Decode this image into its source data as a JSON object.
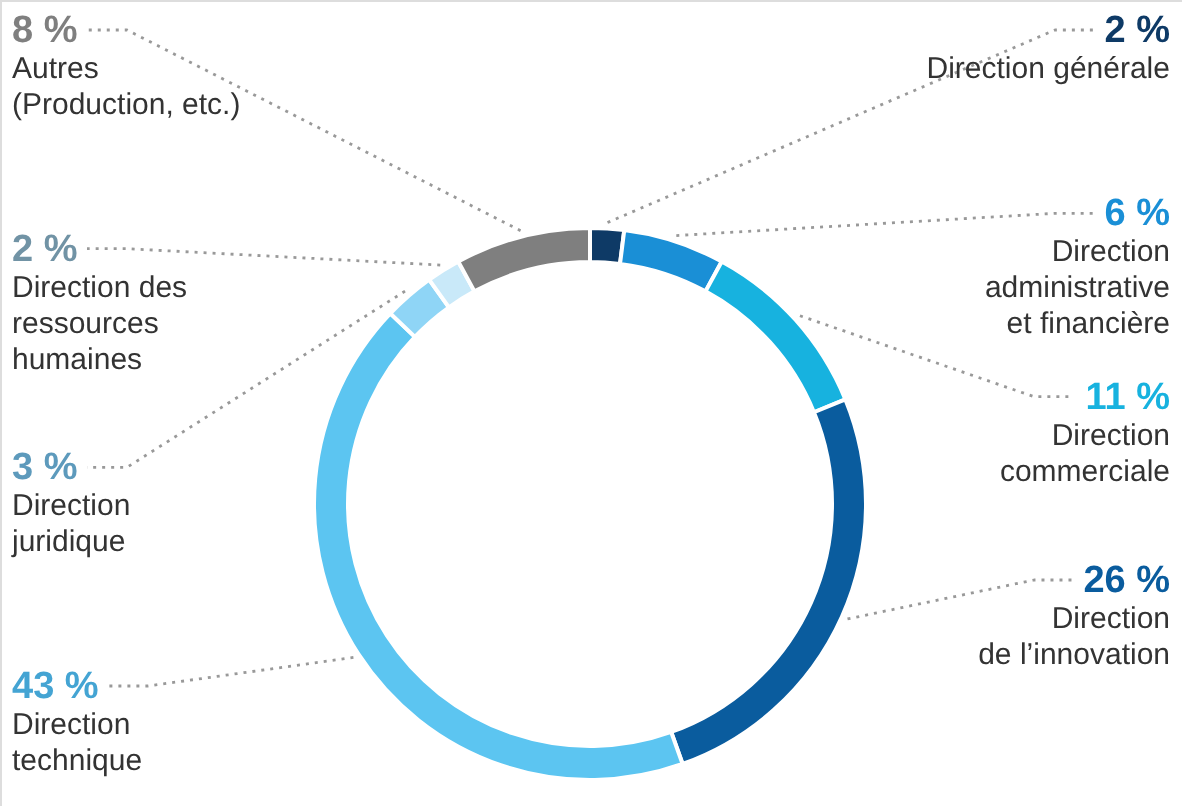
{
  "chart_data": {
    "type": "donut",
    "categories": [
      "Direction générale",
      "Direction\nadministrative\net financière",
      "Direction\ncommerciale",
      "Direction\nde l’innovation",
      "Direction\ntechnique",
      "Direction\njuridique",
      "Direction des\nressources\nhumaines",
      "Autres\n(Production, etc.)"
    ],
    "values": [
      2,
      6,
      11,
      26,
      43,
      3,
      2,
      8
    ],
    "value_labels": [
      "2 %",
      "6 %",
      "11 %",
      "26 %",
      "43 %",
      "3 %",
      "2 %",
      "8 %"
    ],
    "colors": [
      "#0e3a66",
      "#1a8fd6",
      "#17b2df",
      "#0a5c9e",
      "#5cc5f1",
      "#8fd5f6",
      "#c9e9f9",
      "#7f7f7f"
    ]
  }
}
